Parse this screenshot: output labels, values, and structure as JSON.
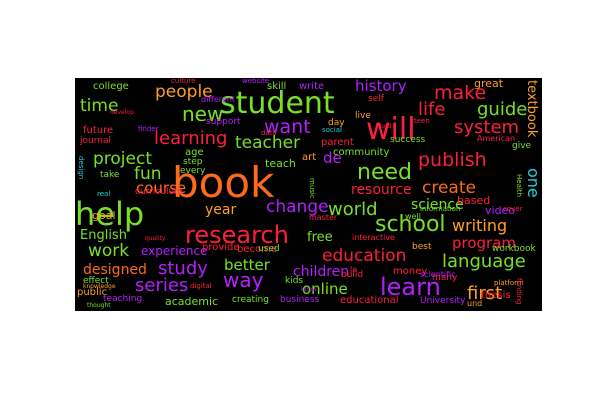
{
  "cloud": {
    "background": "#000000",
    "words": [
      {
        "text": "book",
        "color": "#ff6a1a"
      },
      {
        "text": "help",
        "color": "#78e028"
      },
      {
        "text": "student",
        "color": "#78e028"
      },
      {
        "text": "will",
        "color": "#ff1f3d"
      },
      {
        "text": "research",
        "color": "#ff1f3d"
      },
      {
        "text": "learn",
        "color": "#b51fff"
      },
      {
        "text": "school",
        "color": "#78e028"
      },
      {
        "text": "need",
        "color": "#78e028"
      },
      {
        "text": "new",
        "color": "#78e028"
      },
      {
        "text": "want",
        "color": "#b51fff"
      },
      {
        "text": "people",
        "color": "#ffa020"
      },
      {
        "text": "make",
        "color": "#ff1f3d"
      },
      {
        "text": "learning",
        "color": "#ff1f3d"
      },
      {
        "text": "project",
        "color": "#78e028"
      },
      {
        "text": "time",
        "color": "#78e028"
      },
      {
        "text": "publish",
        "color": "#ff1f3d"
      },
      {
        "text": "language",
        "color": "#78e028"
      },
      {
        "text": "education",
        "color": "#ff1f3d"
      },
      {
        "text": "world",
        "color": "#78e028"
      },
      {
        "text": "history",
        "color": "#b51fff"
      },
      {
        "text": "guide",
        "color": "#78e028"
      },
      {
        "text": "life",
        "color": "#ff1f3d"
      },
      {
        "text": "system",
        "color": "#ff1f3d"
      },
      {
        "text": "teacher",
        "color": "#78e028"
      },
      {
        "text": "change",
        "color": "#b51fff"
      },
      {
        "text": "series",
        "color": "#b51fff"
      },
      {
        "text": "way",
        "color": "#b51fff"
      },
      {
        "text": "work",
        "color": "#78e028"
      },
      {
        "text": "study",
        "color": "#b51fff"
      },
      {
        "text": "first",
        "color": "#ffa020"
      },
      {
        "text": "online",
        "color": "#78e028"
      },
      {
        "text": "writing",
        "color": "#ffa020"
      },
      {
        "text": "program",
        "color": "#ff1f3d"
      },
      {
        "text": "create",
        "color": "#ff6a1a"
      },
      {
        "text": "fun",
        "color": "#78e028"
      },
      {
        "text": "course",
        "color": "#ff6a1a"
      },
      {
        "text": "year",
        "color": "#ffa020"
      },
      {
        "text": "better",
        "color": "#78e028"
      },
      {
        "text": "children",
        "color": "#b51fff"
      },
      {
        "text": "science",
        "color": "#78e028"
      },
      {
        "text": "resource",
        "color": "#ff1f3d"
      },
      {
        "text": "one",
        "color": "#20d0e0"
      },
      {
        "text": "de",
        "color": "#b51fff"
      },
      {
        "text": "English",
        "color": "#78e028"
      },
      {
        "text": "free",
        "color": "#78e028"
      },
      {
        "text": "designed",
        "color": "#ff6a1a"
      },
      {
        "text": "experience",
        "color": "#b51fff"
      },
      {
        "text": "academic",
        "color": "#78e028"
      },
      {
        "text": "textbook",
        "color": "#ffa020"
      },
      {
        "text": "college",
        "color": "#78e028"
      },
      {
        "text": "skill",
        "color": "#78e028"
      },
      {
        "text": "write",
        "color": "#b51fff"
      },
      {
        "text": "great",
        "color": "#ffa020"
      },
      {
        "text": "goal",
        "color": "#ffa020"
      },
      {
        "text": "video",
        "color": "#b51fff"
      },
      {
        "text": "age",
        "color": "#78e028"
      },
      {
        "text": "teach",
        "color": "#78e028"
      },
      {
        "text": "community",
        "color": "#78e028"
      },
      {
        "text": "based",
        "color": "#ff1f3d"
      },
      {
        "text": "thesis",
        "color": "#ff1f3d"
      },
      {
        "text": "future",
        "color": "#ff1f3d"
      },
      {
        "text": "public",
        "color": "#ffa020"
      },
      {
        "text": "teaching",
        "color": "#b51fff"
      },
      {
        "text": "creating",
        "color": "#78e028"
      },
      {
        "text": "business",
        "color": "#b51fff"
      },
      {
        "text": "educational",
        "color": "#ff1f3d"
      },
      {
        "text": "money",
        "color": "#ff1f3d"
      },
      {
        "text": "workbook",
        "color": "#78e028"
      },
      {
        "text": "success",
        "color": "#78e028"
      },
      {
        "text": "parent",
        "color": "#ff1f3d"
      },
      {
        "text": "journal",
        "color": "#ff1f3d"
      },
      {
        "text": "provide",
        "color": "#ff1f3d"
      },
      {
        "text": "become",
        "color": "#ff1f3d"
      },
      {
        "text": "curriculum",
        "color": "#ff1f3d"
      },
      {
        "text": "different",
        "color": "#b51fff"
      },
      {
        "text": "support",
        "color": "#b51fff"
      },
      {
        "text": "art",
        "color": "#ffa020"
      },
      {
        "text": "day",
        "color": "#ffa020"
      },
      {
        "text": "live",
        "color": "#ffa020"
      },
      {
        "text": "self",
        "color": "#ff1f3d"
      },
      {
        "text": "American",
        "color": "#ff1f3d"
      },
      {
        "text": "give",
        "color": "#78e028"
      },
      {
        "text": "many",
        "color": "#ff1f3d"
      },
      {
        "text": "best",
        "color": "#ffa020"
      },
      {
        "text": "build",
        "color": "#ff1f3d"
      },
      {
        "text": "la",
        "color": "#ff1f3d"
      },
      {
        "text": "kids",
        "color": "#78e028"
      },
      {
        "text": "used",
        "color": "#78e028"
      },
      {
        "text": "master",
        "color": "#ff1f3d"
      },
      {
        "text": "interactive",
        "color": "#ff1f3d"
      },
      {
        "text": "scientific",
        "color": "#b51fff"
      },
      {
        "text": "University",
        "color": "#b51fff"
      },
      {
        "text": "und",
        "color": "#ffa020"
      },
      {
        "text": "step",
        "color": "#78e028"
      },
      {
        "text": "every",
        "color": "#78e028"
      },
      {
        "text": "take",
        "color": "#78e028"
      },
      {
        "text": "effect",
        "color": "#78e028"
      },
      {
        "text": "digital",
        "color": "#ff1f3d"
      },
      {
        "text": "website",
        "color": "#b51fff"
      },
      {
        "text": "culture",
        "color": "#ff1f3d"
      },
      {
        "text": "data",
        "color": "#ff1f3d"
      },
      {
        "text": "finder",
        "color": "#b51fff"
      },
      {
        "text": "music",
        "color": "#78e028"
      },
      {
        "text": "well",
        "color": "#78e028"
      },
      {
        "text": "Health",
        "color": "#78e028"
      },
      {
        "text": "platform",
        "color": "#ffa020"
      },
      {
        "text": "funding",
        "color": "#ff1f3d"
      },
      {
        "text": "information",
        "color": "#78e028"
      },
      {
        "text": "cover",
        "color": "#ff1f3d"
      },
      {
        "text": "social",
        "color": "#20d0e0"
      },
      {
        "text": "develop",
        "color": "#ff1f3d"
      },
      {
        "text": "design",
        "color": "#20d0e0"
      },
      {
        "text": "knowledge",
        "color": "#ffa020"
      },
      {
        "text": "thought",
        "color": "#78e028"
      },
      {
        "text": "real",
        "color": "#20d0e0"
      },
      {
        "text": "quality",
        "color": "#ff1f3d"
      },
      {
        "text": "know",
        "color": "#b51fff"
      },
      {
        "text": "teen",
        "color": "#ff1f3d"
      },
      {
        "text": "fund",
        "color": "#ff1f3d"
      }
    ]
  }
}
